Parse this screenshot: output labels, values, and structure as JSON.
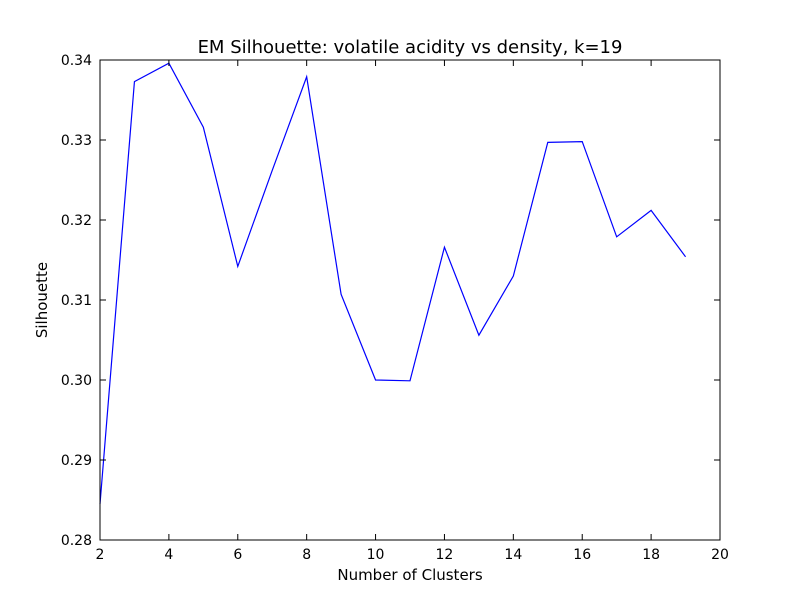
{
  "chart_data": {
    "type": "line",
    "title": "EM Silhouette: volatile acidity vs density, k=19",
    "xlabel": "Number of Clusters",
    "ylabel": "Silhouette",
    "xlim": [
      2,
      20
    ],
    "ylim": [
      0.28,
      0.34
    ],
    "xticks": [
      2,
      4,
      6,
      8,
      10,
      12,
      14,
      16,
      18,
      20
    ],
    "xtick_labels": [
      "2",
      "4",
      "6",
      "8",
      "10",
      "12",
      "14",
      "16",
      "18",
      "20"
    ],
    "yticks": [
      0.28,
      0.29,
      0.3,
      0.31,
      0.32,
      0.33,
      0.34
    ],
    "ytick_labels": [
      "0.28",
      "0.29",
      "0.30",
      "0.31",
      "0.32",
      "0.33",
      "0.34"
    ],
    "grid": false,
    "series": [
      {
        "color": "#0000ff",
        "x": [
          2,
          3,
          4,
          5,
          6,
          7,
          8,
          9,
          10,
          11,
          12,
          13,
          14,
          15,
          16,
          17,
          18,
          19
        ],
        "y": [
          0.2845,
          0.3373,
          0.3396,
          0.3316,
          0.3142,
          0.3262,
          0.3379,
          0.3107,
          0.3,
          0.2999,
          0.3166,
          0.3056,
          0.313,
          0.3297,
          0.3298,
          0.3179,
          0.3212,
          0.3154
        ]
      }
    ]
  }
}
